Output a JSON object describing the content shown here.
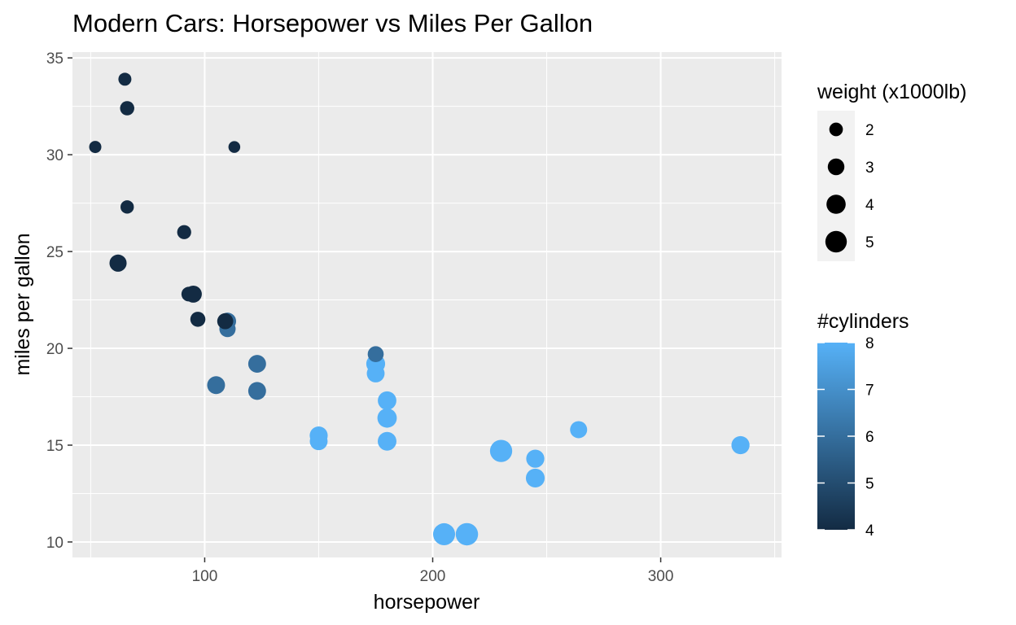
{
  "chart_data": {
    "type": "scatter",
    "title": "Modern Cars: Horsepower vs Miles Per Gallon",
    "xlabel": "horsepower",
    "ylabel": "miles per gallon",
    "xlim": [
      42,
      353
    ],
    "ylim": [
      9.2,
      35.3
    ],
    "x_ticks": [
      100,
      200,
      300
    ],
    "y_ticks": [
      10,
      15,
      20,
      25,
      30,
      35
    ],
    "grid": true,
    "size_legend": {
      "title": "weight (x1000lb)",
      "values": [
        2,
        3,
        4,
        5
      ]
    },
    "color_legend": {
      "title": "#cylinders",
      "values": [
        4,
        5,
        6,
        7,
        8
      ],
      "low_color": "#132B43",
      "high_color": "#56B1F7"
    },
    "points": [
      {
        "hp": 110,
        "mpg": 21.0,
        "cyl": 6,
        "wt": 2.62
      },
      {
        "hp": 110,
        "mpg": 21.0,
        "cyl": 6,
        "wt": 2.875
      },
      {
        "hp": 93,
        "mpg": 22.8,
        "cyl": 4,
        "wt": 2.32
      },
      {
        "hp": 110,
        "mpg": 21.4,
        "cyl": 6,
        "wt": 3.215
      },
      {
        "hp": 175,
        "mpg": 18.7,
        "cyl": 8,
        "wt": 3.44
      },
      {
        "hp": 105,
        "mpg": 18.1,
        "cyl": 6,
        "wt": 3.46
      },
      {
        "hp": 245,
        "mpg": 14.3,
        "cyl": 8,
        "wt": 3.57
      },
      {
        "hp": 62,
        "mpg": 24.4,
        "cyl": 4,
        "wt": 3.19
      },
      {
        "hp": 95,
        "mpg": 22.8,
        "cyl": 4,
        "wt": 3.15
      },
      {
        "hp": 123,
        "mpg": 19.2,
        "cyl": 6,
        "wt": 3.44
      },
      {
        "hp": 123,
        "mpg": 17.8,
        "cyl": 6,
        "wt": 3.44
      },
      {
        "hp": 180,
        "mpg": 16.4,
        "cyl": 8,
        "wt": 4.07
      },
      {
        "hp": 180,
        "mpg": 17.3,
        "cyl": 8,
        "wt": 3.73
      },
      {
        "hp": 180,
        "mpg": 15.2,
        "cyl": 8,
        "wt": 3.78
      },
      {
        "hp": 205,
        "mpg": 10.4,
        "cyl": 8,
        "wt": 5.25
      },
      {
        "hp": 215,
        "mpg": 10.4,
        "cyl": 8,
        "wt": 5.424
      },
      {
        "hp": 230,
        "mpg": 14.7,
        "cyl": 8,
        "wt": 5.345
      },
      {
        "hp": 66,
        "mpg": 32.4,
        "cyl": 4,
        "wt": 2.2
      },
      {
        "hp": 52,
        "mpg": 30.4,
        "cyl": 4,
        "wt": 1.615
      },
      {
        "hp": 65,
        "mpg": 33.9,
        "cyl": 4,
        "wt": 1.835
      },
      {
        "hp": 97,
        "mpg": 21.5,
        "cyl": 4,
        "wt": 2.465
      },
      {
        "hp": 150,
        "mpg": 15.5,
        "cyl": 8,
        "wt": 3.52
      },
      {
        "hp": 150,
        "mpg": 15.2,
        "cyl": 8,
        "wt": 3.435
      },
      {
        "hp": 245,
        "mpg": 13.3,
        "cyl": 8,
        "wt": 3.84
      },
      {
        "hp": 175,
        "mpg": 19.2,
        "cyl": 8,
        "wt": 3.845
      },
      {
        "hp": 66,
        "mpg": 27.3,
        "cyl": 4,
        "wt": 1.935
      },
      {
        "hp": 91,
        "mpg": 26.0,
        "cyl": 4,
        "wt": 2.14
      },
      {
        "hp": 113,
        "mpg": 30.4,
        "cyl": 4,
        "wt": 1.513
      },
      {
        "hp": 264,
        "mpg": 15.8,
        "cyl": 8,
        "wt": 3.17
      },
      {
        "hp": 175,
        "mpg": 19.7,
        "cyl": 6,
        "wt": 2.77
      },
      {
        "hp": 335,
        "mpg": 15.0,
        "cyl": 8,
        "wt": 3.57
      },
      {
        "hp": 109,
        "mpg": 21.4,
        "cyl": 4,
        "wt": 2.78
      }
    ]
  }
}
